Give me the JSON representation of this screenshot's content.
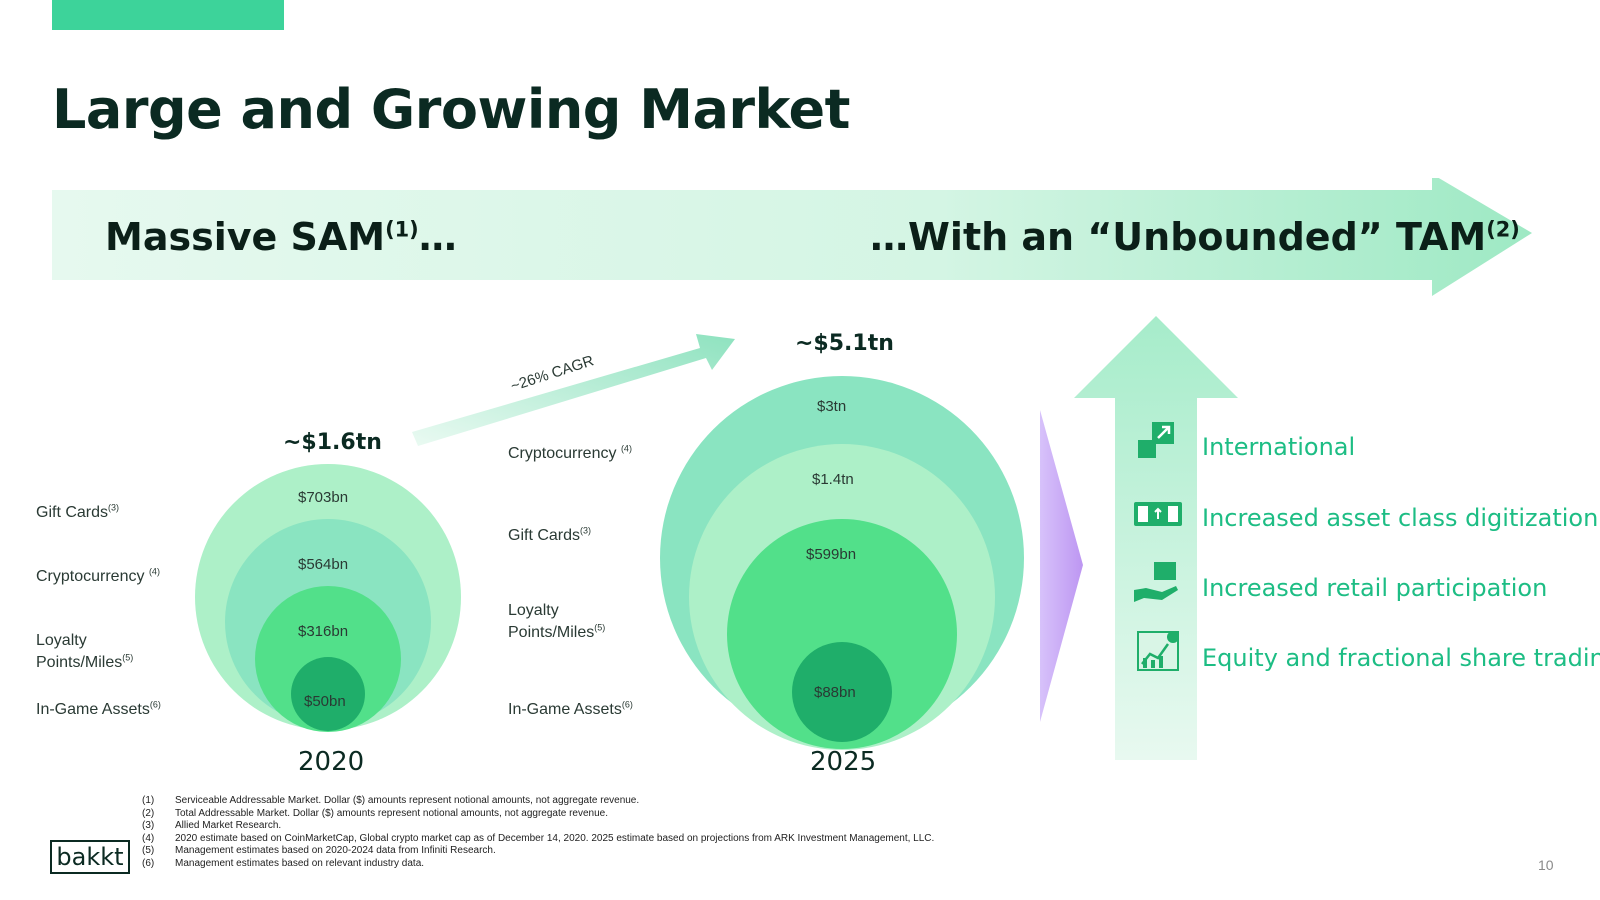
{
  "header": {
    "title": "Large and Growing Market"
  },
  "banner": {
    "left_text": "Massive SAM",
    "left_sup": "(1)",
    "left_suffix": "…",
    "right_text": "…With an “Unbounded” TAM",
    "right_sup": "(2)"
  },
  "sam_2020": {
    "year": "2020",
    "total": "~$1.6tn",
    "rings": [
      {
        "category": "Gift Cards",
        "sup": "(3)",
        "value": "$703bn"
      },
      {
        "category": "Cryptocurrency",
        "sup": "(4)",
        "value": "$564bn"
      },
      {
        "category_line1": "Loyalty",
        "category": "Points/Miles",
        "sup": "(5)",
        "value": "$316bn"
      },
      {
        "category": "In-Game Assets",
        "sup": "(6)",
        "value": "$50bn"
      }
    ]
  },
  "cagr": {
    "label": "~26% CAGR"
  },
  "sam_2025": {
    "year": "2025",
    "total": "~$5.1tn",
    "rings": [
      {
        "category": "Cryptocurrency",
        "sup": "(4)",
        "value": "$3tn"
      },
      {
        "category": "Gift Cards",
        "sup": "(3)",
        "value": "$1.4tn"
      },
      {
        "category_line1": "Loyalty",
        "category": "Points/Miles",
        "sup": "(5)",
        "value": "$599bn"
      },
      {
        "category": "In-Game Assets",
        "sup": "(6)",
        "value": "$88bn"
      }
    ]
  },
  "tam_drivers": [
    {
      "label": "International",
      "icon": "expand-arrow-icon"
    },
    {
      "label": "Increased asset class digitization",
      "icon": "banknote-icon"
    },
    {
      "label": "Increased retail participation",
      "icon": "hand-box-icon"
    },
    {
      "label": "Equity and fractional share trading",
      "icon": "stock-chart-icon"
    }
  ],
  "footnotes": [
    {
      "n": "(1)",
      "text": "Serviceable Addressable Market. Dollar ($) amounts represent notional amounts, not aggregate revenue."
    },
    {
      "n": "(2)",
      "text": "Total Addressable Market.  Dollar ($) amounts represent notional amounts, not aggregate revenue."
    },
    {
      "n": "(3)",
      "text": "Allied Market Research."
    },
    {
      "n": "(4)",
      "text": "2020 estimate based on CoinMarketCap, Global crypto market cap as of December 14, 2020. 2025 estimate based on projections from ARK Investment Management, LLC."
    },
    {
      "n": "(5)",
      "text": "Management estimates based on 2020-2024 data from Infiniti Research."
    },
    {
      "n": "(6)",
      "text": "Management estimates based on relevant industry data."
    }
  ],
  "logo": {
    "text": "bakkt"
  },
  "page_number": "10",
  "colors": {
    "accent": "#3dd39a",
    "ring_light": "#adf0c8",
    "ring_mid": "#8ae4c1",
    "ring_green": "#52e08a",
    "ring_dark": "#1fae6a",
    "driver_text": "#1dbd84",
    "purple": "#c9a6f5"
  }
}
